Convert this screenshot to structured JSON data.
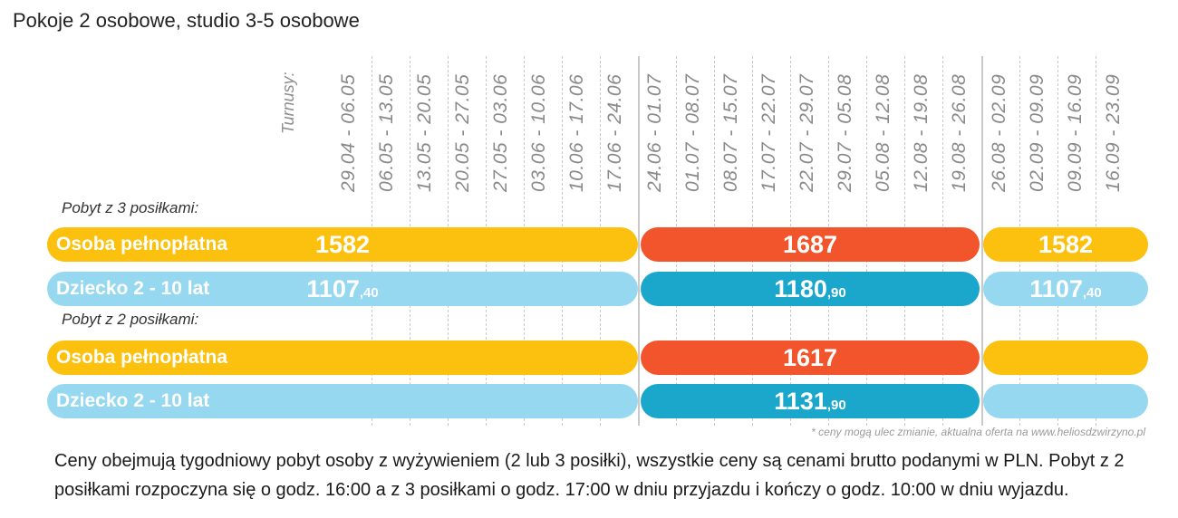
{
  "title": "Pokoje 2 osobowe, studio 3-5 osobowe",
  "turnusy_label": "Turnusy:",
  "dates": [
    "29.04 - 06.05",
    "06.05 - 13.05",
    "13.05 - 20.05",
    "20.05 - 27.05",
    "27.05 - 03.06",
    "03.06 - 10.06",
    "10.06 - 17.06",
    "17.06 - 24.06",
    "24.06 - 01.07",
    "01.07 - 08.07",
    "08.07 - 15.07",
    "17.07 - 22.07",
    "22.07 - 29.07",
    "29.07 - 05.08",
    "05.08 - 12.08",
    "12.08 - 19.08",
    "19.08 - 26.08",
    "26.08 - 02.09",
    "02.09 - 09.09",
    "09.09 - 16.09",
    "16.09 - 23.09"
  ],
  "section1": "Pobyt z 3 posiłkami:",
  "section2": "Pobyt z 2 posiłkami:",
  "rows": {
    "adult_label": "Osoba pełnopłatna",
    "child_label": "Dziecko 2 - 10 lat",
    "r1": {
      "low": "1582",
      "high": "1687",
      "low2": "1582"
    },
    "r2": {
      "low": "1107",
      "low_c": ",40",
      "high": "1180",
      "high_c": ",90",
      "low2": "1107",
      "low2_c": ",40"
    },
    "r3": {
      "high": "1617"
    },
    "r4": {
      "high": "1131",
      "high_c": ",90"
    }
  },
  "note": "* ceny mogą ulec zmianie, aktualna oferta na www.heliosdzwirzyno.pl",
  "footer": "Ceny obejmują tygodniowy pobyt osoby z wyżywieniem (2 lub 3 posiłki), wszystkie ceny są cenami brutto podanymi w PLN. Pobyt z 2 posiłkami rozpoczyna się o godz. 16:00  a z 3 posiłkami o godz. 17:00 w dniu przyjazdu i kończy o godz. 10:00 w dniu wyjazdu.",
  "colors": {
    "yellow": "#fcc10e",
    "orange": "#f2552b",
    "light_blue": "#97d8f1",
    "teal": "#1ba7cb"
  }
}
